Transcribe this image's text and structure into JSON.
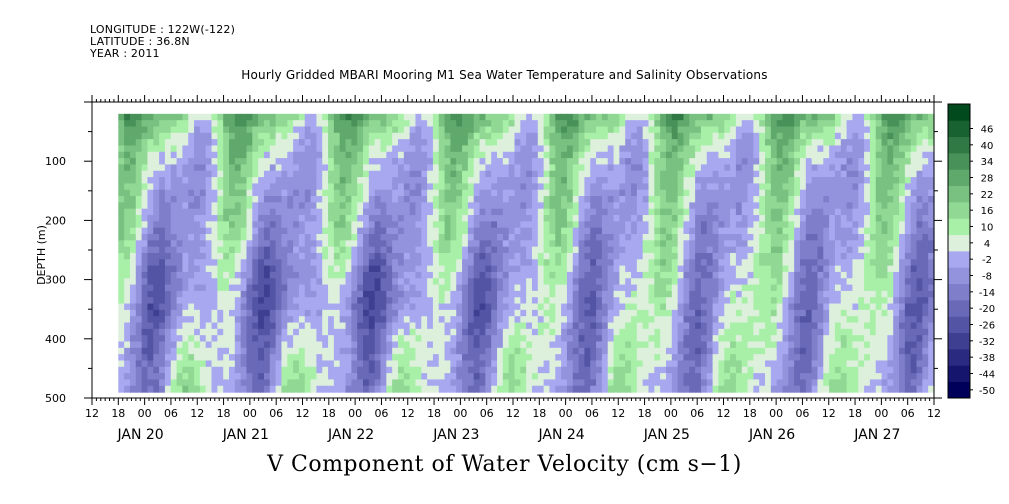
{
  "header": {
    "longitude": "LONGITUDE : 122W(-122)",
    "latitude": "LATITUDE : 36.8N",
    "year": "YEAR : 2011"
  },
  "chart_data": {
    "type": "heatmap",
    "title": "Hourly Gridded MBARI Mooring M1 Sea Water Temperature and Salinity Observations",
    "xlabel": "V Component of Water Velocity (cm s−1)",
    "ylabel": "DEPTH (m)",
    "y_axis": {
      "range": [
        500,
        0
      ],
      "inverted": true,
      "ticks": [
        100,
        200,
        300,
        400,
        500
      ]
    },
    "x_axis": {
      "start": "2011-01-19T12:00",
      "end": "2011-01-27T12:00",
      "hour_tick_labels": [
        "12",
        "18",
        "00",
        "06",
        "12",
        "18",
        "00",
        "06",
        "12",
        "18",
        "00",
        "06",
        "12",
        "18",
        "00",
        "06",
        "12",
        "18",
        "00",
        "06",
        "12",
        "18",
        "00",
        "06",
        "12",
        "18",
        "00",
        "06",
        "12",
        "18",
        "00",
        "06",
        "12"
      ],
      "date_labels": [
        "JAN 20",
        "JAN 21",
        "JAN 22",
        "JAN 23",
        "JAN 24",
        "JAN 25",
        "JAN 26",
        "JAN 27"
      ]
    },
    "data_extent": {
      "time_start": "2011-01-19T18:00",
      "time_end": "2011-01-27T12:00",
      "depth_min": 20,
      "depth_max": 490
    },
    "colorbar": {
      "levels": [
        -50,
        -44,
        -38,
        -32,
        -26,
        -20,
        -14,
        -8,
        -2,
        4,
        10,
        16,
        22,
        28,
        34,
        40,
        46
      ],
      "labels": [
        "-50",
        "-44",
        "-38",
        "-32",
        "-26",
        "-20",
        "-14",
        "-8",
        "-2",
        "4",
        "10",
        "16",
        "22",
        "28",
        "34",
        "40",
        "46"
      ],
      "low_color": "#00005a",
      "mid_low_color": "#a8a8f0",
      "mid_high_color": "#a8f0a8",
      "high_color": "#004a1e"
    },
    "grid": false,
    "legend_position": "right colorbar"
  }
}
